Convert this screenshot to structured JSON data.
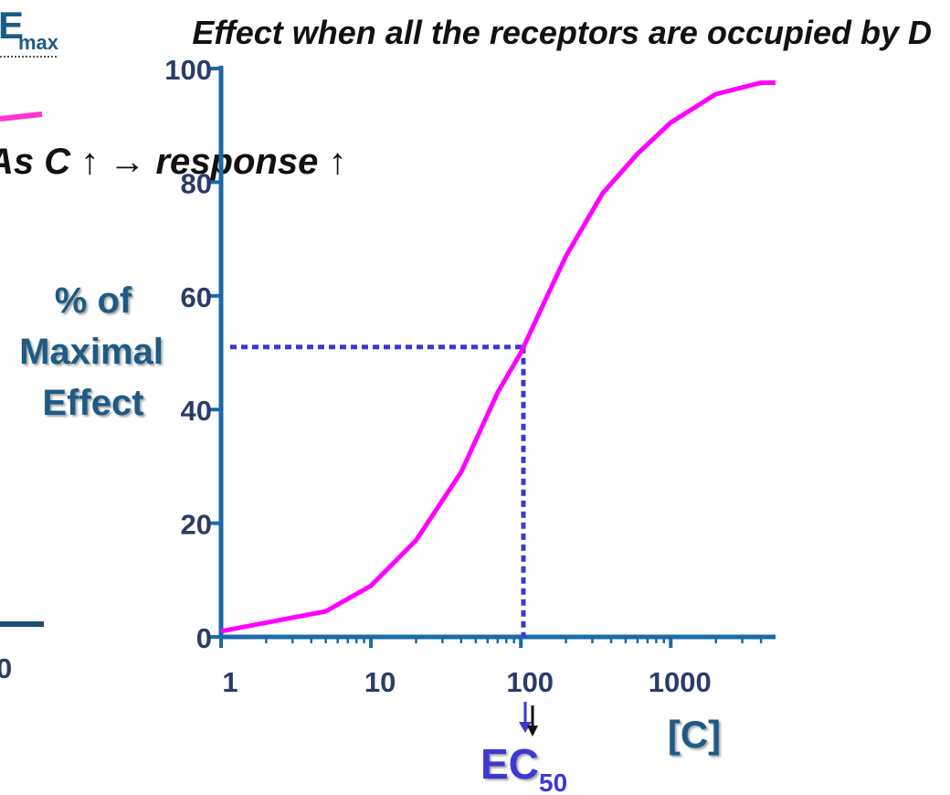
{
  "left_panel": {
    "emax_base": "E",
    "emax_sub": "max",
    "statement": "As C ↑ → response ↑",
    "axis_label": "0"
  },
  "chart_data": {
    "type": "line",
    "title": "Effect when all the receptors are occupied by D",
    "ylabel": [
      "% of",
      "Maximal",
      "Effect"
    ],
    "xlabel": "[C]",
    "x": [
      1,
      5,
      10,
      20,
      40,
      70,
      100,
      150,
      200,
      350,
      600,
      1000,
      2000,
      4000,
      5000
    ],
    "values": [
      1,
      4.5,
      9,
      17,
      29,
      43,
      50,
      60,
      67,
      78,
      85,
      90.5,
      95.5,
      97.5,
      97.5
    ],
    "color": "#ff00ff",
    "xscale": "log",
    "xlim": [
      1,
      5000
    ],
    "ylim": [
      0,
      100
    ],
    "xticks": [
      1,
      10,
      100,
      1000
    ],
    "yticks": [
      0,
      20,
      40,
      60,
      80,
      100
    ],
    "xminorticks": [
      2,
      3,
      4,
      5,
      6,
      7,
      8,
      9,
      20,
      30,
      40,
      50,
      60,
      70,
      80,
      90,
      200,
      300,
      400,
      500,
      600,
      700,
      800,
      900,
      2000,
      3000,
      4000
    ],
    "ec50": {
      "x": 104,
      "y": 51,
      "label": "EC",
      "label_sub": "50"
    }
  }
}
